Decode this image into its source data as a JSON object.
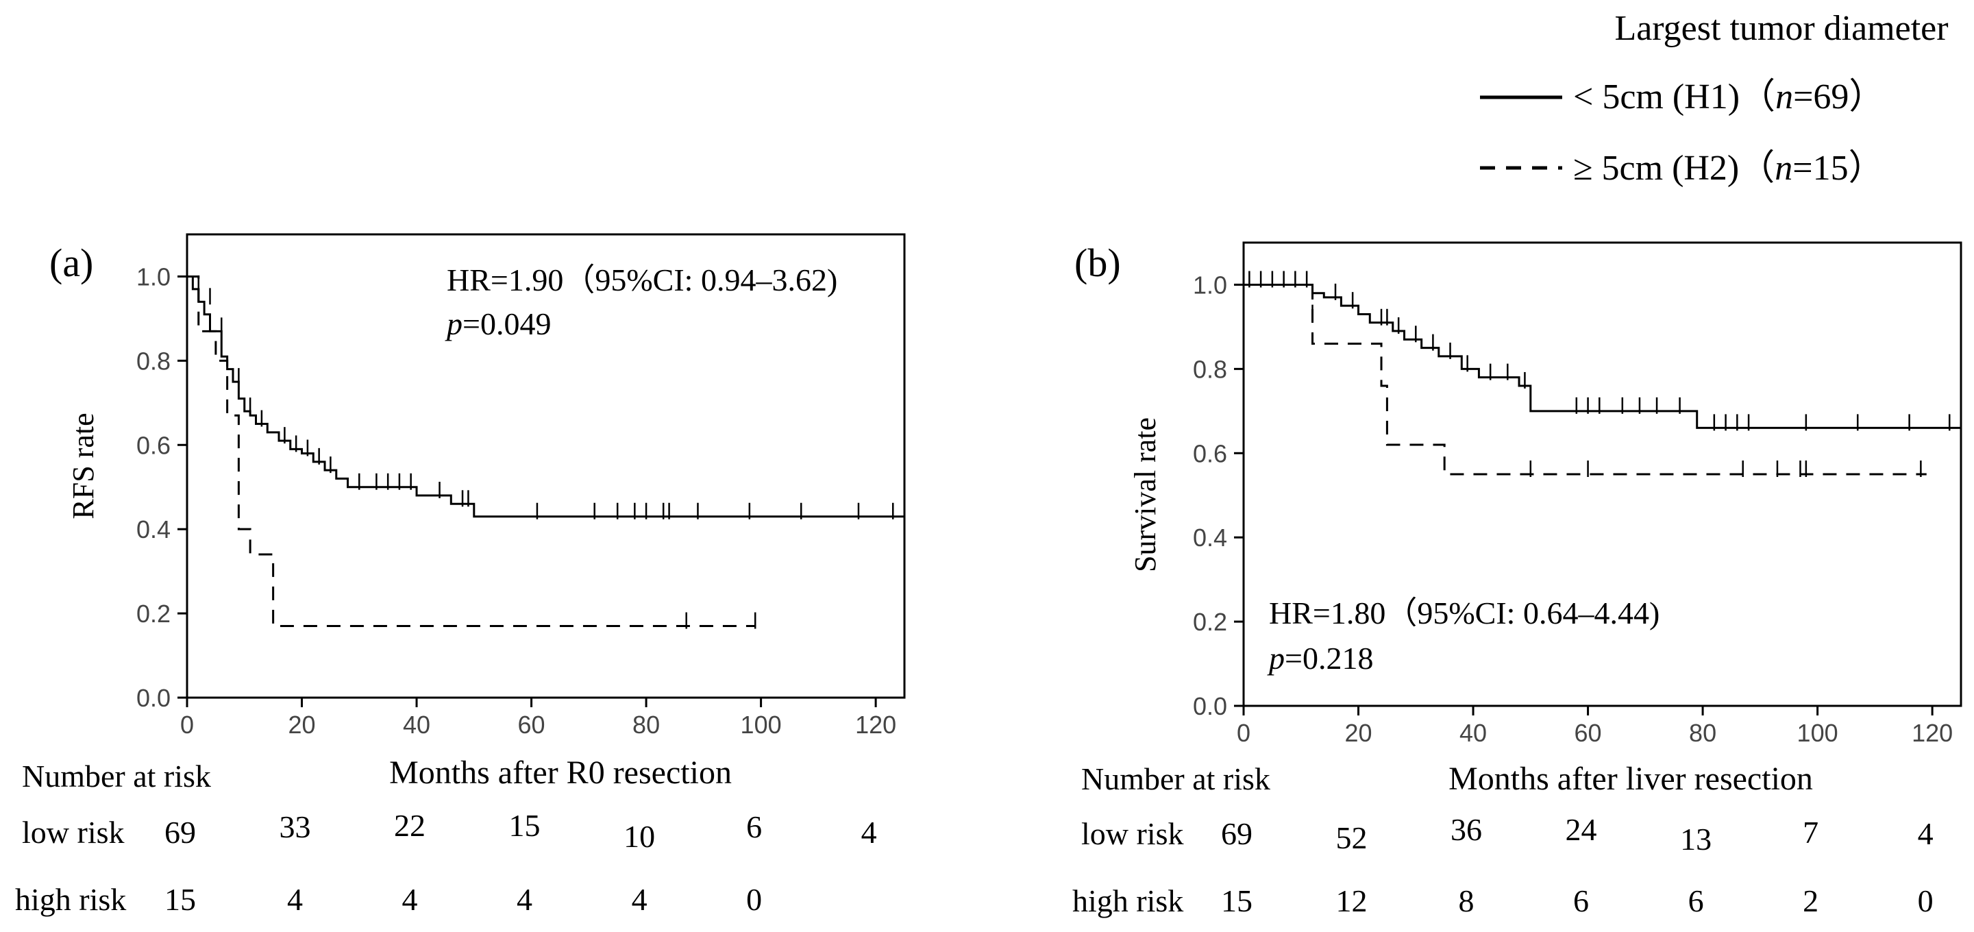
{
  "legend": {
    "title": "Largest tumor diameter",
    "items": [
      {
        "label": "< 5cm (H1)",
        "n_open": "（",
        "n_var": "n",
        "n_rest": "=69）",
        "style": "solid"
      },
      {
        "label": "≥ 5cm (H2)",
        "n_open": "（",
        "n_var": "n",
        "n_rest": "=15）",
        "style": "dashed"
      }
    ]
  },
  "chart_data": [
    {
      "type": "line",
      "panel_label": "(a)",
      "ylabel": "RFS rate",
      "xlabel": "Months after R0 resection",
      "xlim": [
        0,
        125
      ],
      "ylim": [
        0.0,
        1.1
      ],
      "xticks": [
        0,
        20,
        40,
        60,
        80,
        100,
        120
      ],
      "yticks": [
        "0.0",
        "0.2",
        "0.4",
        "0.6",
        "0.8",
        "1.0"
      ],
      "hr_text": "HR=1.90（95%CI: 0.94–3.62)",
      "p_var": "p",
      "p_rest": "=0.049",
      "series": [
        {
          "name": "< 5cm (H1)",
          "style": "solid",
          "steps": [
            [
              0,
              1.0
            ],
            [
              1,
              0.97
            ],
            [
              2,
              0.94
            ],
            [
              3,
              0.91
            ],
            [
              4,
              0.87
            ],
            [
              6,
              0.81
            ],
            [
              7,
              0.78
            ],
            [
              8,
              0.75
            ],
            [
              9,
              0.71
            ],
            [
              10,
              0.68
            ],
            [
              11,
              0.67
            ],
            [
              12,
              0.65
            ],
            [
              14,
              0.63
            ],
            [
              16,
              0.61
            ],
            [
              18,
              0.59
            ],
            [
              20,
              0.58
            ],
            [
              22,
              0.56
            ],
            [
              24,
              0.54
            ],
            [
              26,
              0.52
            ],
            [
              28,
              0.5
            ],
            [
              38,
              0.5
            ],
            [
              40,
              0.48
            ],
            [
              46,
              0.46
            ],
            [
              50,
              0.43
            ],
            [
              125,
              0.43
            ]
          ],
          "censors": [
            [
              2,
              0.97
            ],
            [
              4,
              0.94
            ],
            [
              6,
              0.87
            ],
            [
              9,
              0.75
            ],
            [
              11,
              0.68
            ],
            [
              13,
              0.65
            ],
            [
              17,
              0.61
            ],
            [
              19,
              0.59
            ],
            [
              21,
              0.58
            ],
            [
              23,
              0.56
            ],
            [
              25,
              0.54
            ],
            [
              30,
              0.5
            ],
            [
              33,
              0.5
            ],
            [
              35,
              0.5
            ],
            [
              37,
              0.5
            ],
            [
              39,
              0.5
            ],
            [
              44,
              0.48
            ],
            [
              48,
              0.46
            ],
            [
              49,
              0.46
            ],
            [
              61,
              0.43
            ],
            [
              71,
              0.43
            ],
            [
              75,
              0.43
            ],
            [
              78,
              0.43
            ],
            [
              80,
              0.43
            ],
            [
              83,
              0.43
            ],
            [
              84,
              0.43
            ],
            [
              89,
              0.43
            ],
            [
              98,
              0.43
            ],
            [
              107,
              0.43
            ],
            [
              117,
              0.43
            ],
            [
              123,
              0.43
            ]
          ]
        },
        {
          "name": "≥ 5cm (H2)",
          "style": "dashed",
          "steps": [
            [
              0,
              1.0
            ],
            [
              2,
              0.87
            ],
            [
              5,
              0.8
            ],
            [
              7,
              0.67
            ],
            [
              9,
              0.4
            ],
            [
              11,
              0.34
            ],
            [
              15,
              0.17
            ],
            [
              99,
              0.17
            ]
          ],
          "censors": [
            [
              87,
              0.17
            ],
            [
              99,
              0.17
            ]
          ]
        }
      ],
      "risk_table": {
        "header": "Number at risk",
        "rows": [
          {
            "label": "low risk",
            "values": [
              "69",
              "33",
              "22",
              "15",
              "10",
              "6",
              "4"
            ]
          },
          {
            "label": "high risk",
            "values": [
              "15",
              "4",
              "4",
              "4",
              "4",
              "0",
              ""
            ]
          }
        ]
      }
    },
    {
      "type": "line",
      "panel_label": "(b)",
      "ylabel": "Survival rate",
      "xlabel": "Months after liver resection",
      "xlim": [
        0,
        125
      ],
      "ylim": [
        0.0,
        1.1
      ],
      "xticks": [
        0,
        20,
        40,
        60,
        80,
        100,
        120
      ],
      "yticks": [
        "0.0",
        "0.2",
        "0.4",
        "0.6",
        "0.8",
        "1.0"
      ],
      "hr_text": "HR=1.80（95%CI: 0.64–4.44)",
      "p_var": "p",
      "p_rest": "=0.218",
      "series": [
        {
          "name": "< 5cm (H1)",
          "style": "solid",
          "steps": [
            [
              0,
              1.0
            ],
            [
              12,
              0.98
            ],
            [
              14,
              0.97
            ],
            [
              17,
              0.95
            ],
            [
              20,
              0.93
            ],
            [
              22,
              0.91
            ],
            [
              26,
              0.89
            ],
            [
              28,
              0.87
            ],
            [
              31,
              0.85
            ],
            [
              34,
              0.83
            ],
            [
              38,
              0.8
            ],
            [
              41,
              0.78
            ],
            [
              48,
              0.76
            ],
            [
              50,
              0.7
            ],
            [
              79,
              0.7
            ],
            [
              79,
              0.66
            ],
            [
              125,
              0.66
            ]
          ],
          "censors": [
            [
              1,
              1.0
            ],
            [
              3,
              1.0
            ],
            [
              5,
              1.0
            ],
            [
              7,
              1.0
            ],
            [
              9,
              1.0
            ],
            [
              11,
              1.0
            ],
            [
              16,
              0.97
            ],
            [
              19,
              0.95
            ],
            [
              24,
              0.91
            ],
            [
              25,
              0.91
            ],
            [
              27,
              0.89
            ],
            [
              30,
              0.87
            ],
            [
              33,
              0.85
            ],
            [
              36,
              0.83
            ],
            [
              39,
              0.8
            ],
            [
              43,
              0.78
            ],
            [
              46,
              0.78
            ],
            [
              49,
              0.76
            ],
            [
              58,
              0.7
            ],
            [
              60,
              0.7
            ],
            [
              62,
              0.7
            ],
            [
              66,
              0.7
            ],
            [
              69,
              0.7
            ],
            [
              72,
              0.7
            ],
            [
              76,
              0.7
            ],
            [
              82,
              0.66
            ],
            [
              84,
              0.66
            ],
            [
              86,
              0.66
            ],
            [
              88,
              0.66
            ],
            [
              98,
              0.66
            ],
            [
              107,
              0.66
            ],
            [
              116,
              0.66
            ],
            [
              123,
              0.66
            ]
          ]
        },
        {
          "name": "≥ 5cm (H2)",
          "style": "dashed",
          "steps": [
            [
              0,
              1.0
            ],
            [
              12,
              0.86
            ],
            [
              18,
              0.86
            ],
            [
              24,
              0.76
            ],
            [
              25,
              0.62
            ],
            [
              34,
              0.62
            ],
            [
              35,
              0.55
            ],
            [
              119,
              0.55
            ]
          ],
          "censors": [
            [
              12,
              0.92
            ],
            [
              50,
              0.55
            ],
            [
              60,
              0.55
            ],
            [
              87,
              0.55
            ],
            [
              93,
              0.55
            ],
            [
              97,
              0.55
            ],
            [
              98,
              0.55
            ],
            [
              118,
              0.55
            ]
          ]
        }
      ],
      "risk_table": {
        "header": "Number at risk",
        "rows": [
          {
            "label": "low risk",
            "values": [
              "69",
              "52",
              "36",
              "24",
              "13",
              "7",
              "4"
            ]
          },
          {
            "label": "high risk",
            "values": [
              "15",
              "12",
              "8",
              "6",
              "6",
              "2",
              "0"
            ]
          }
        ]
      }
    }
  ]
}
